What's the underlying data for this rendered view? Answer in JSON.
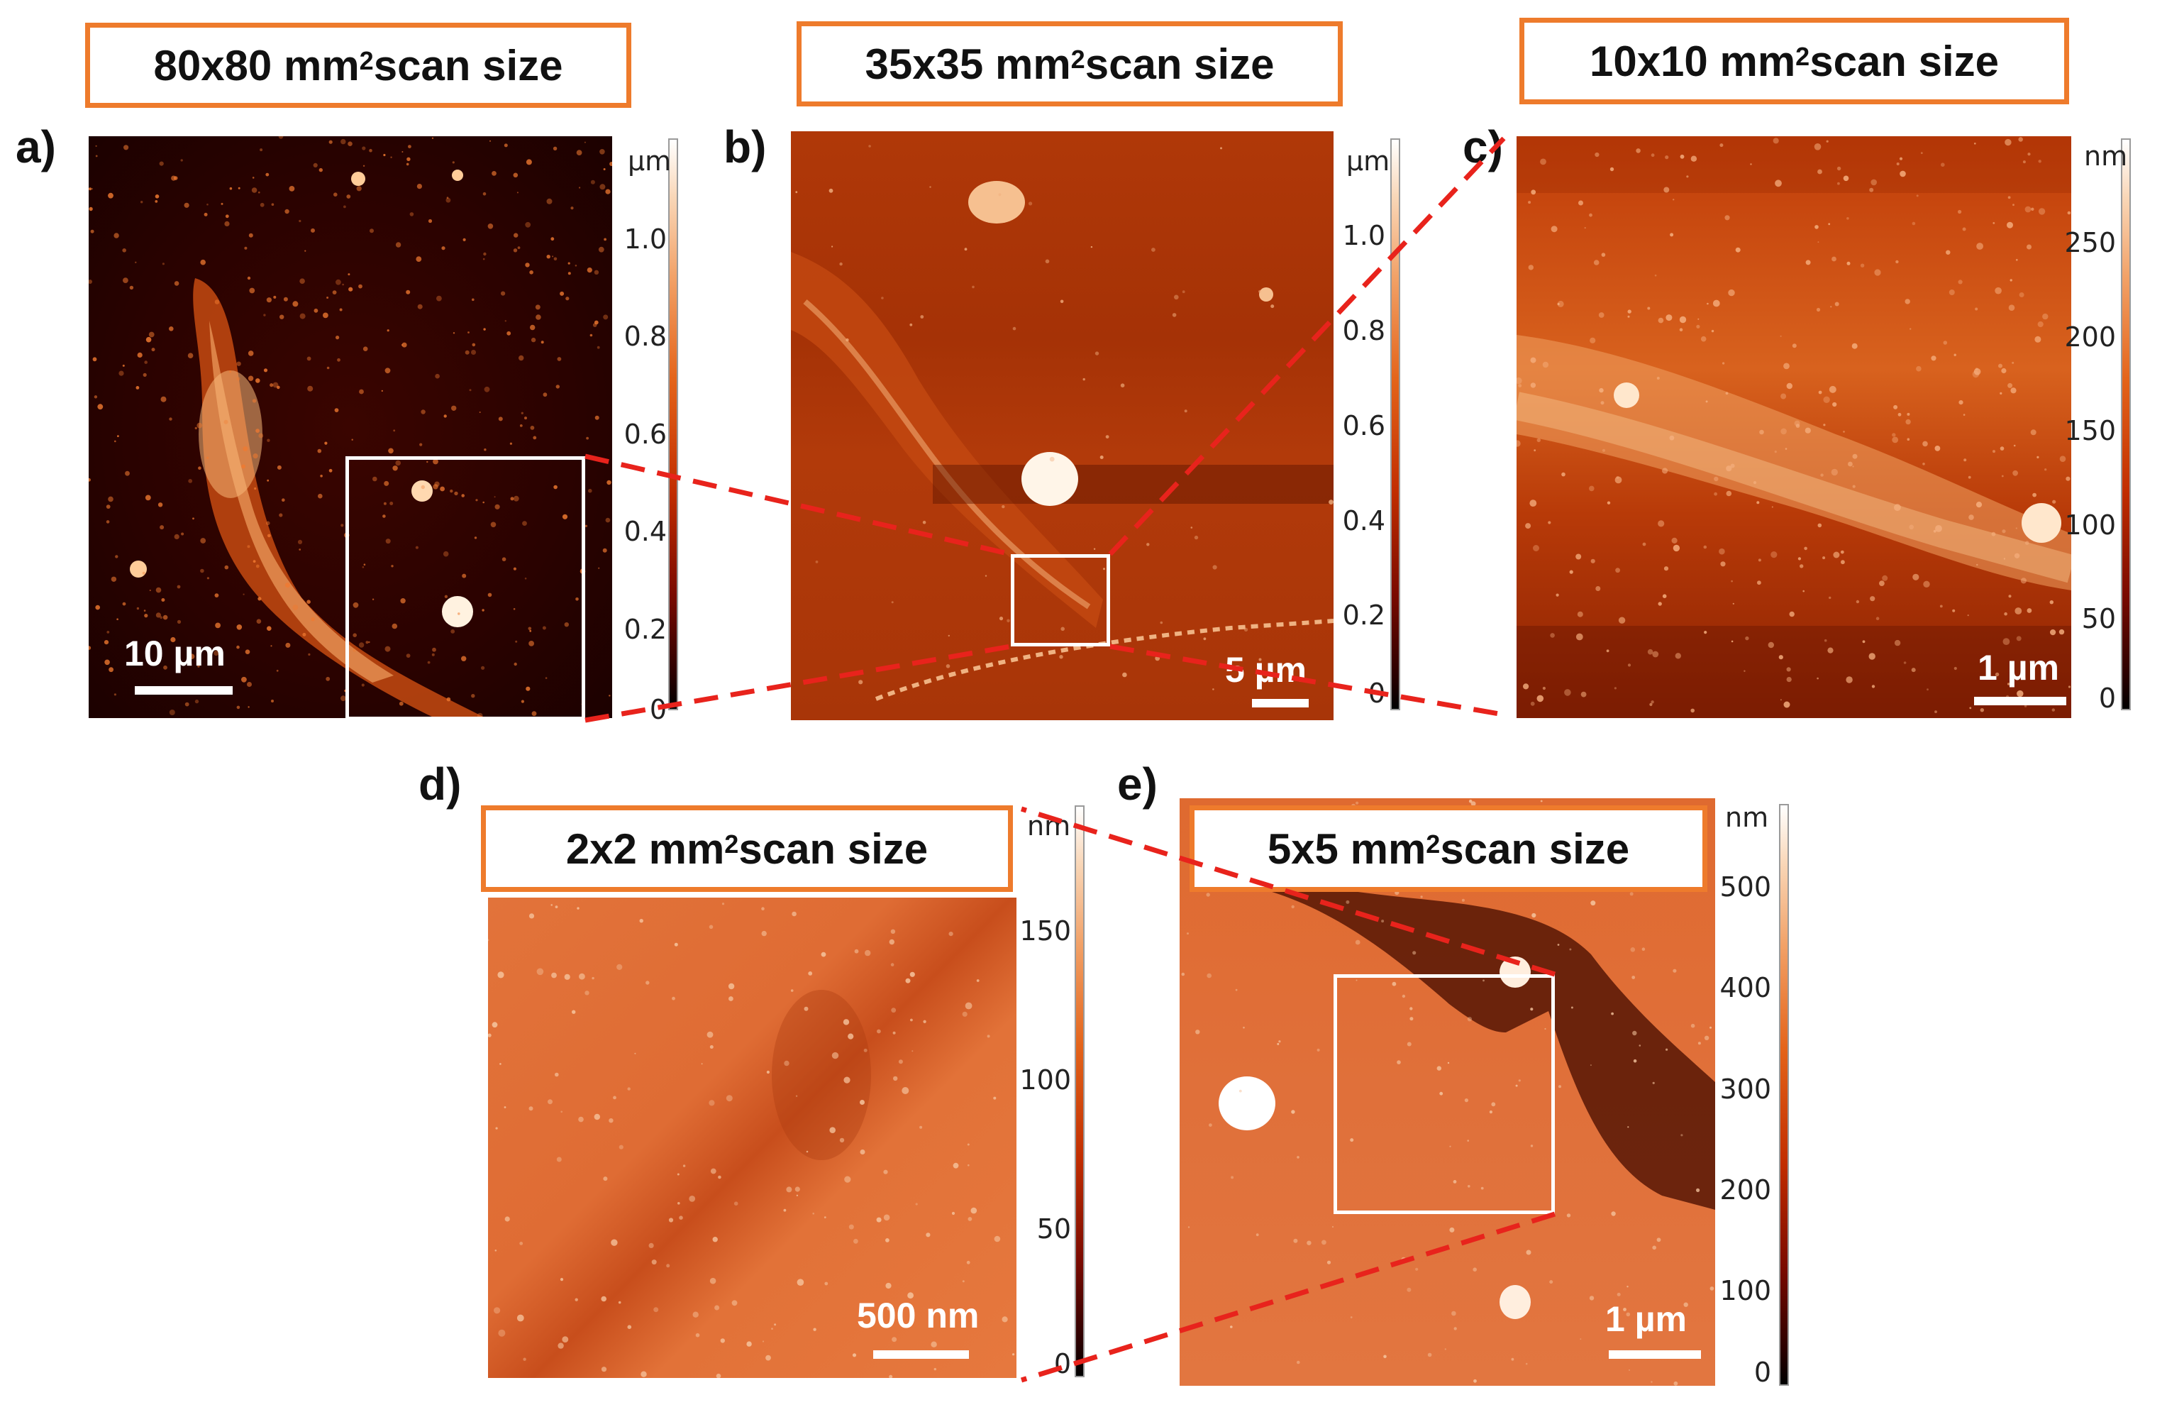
{
  "panels": {
    "a": {
      "letter": "a)",
      "title_main": "80x80 mm",
      "title_sup": "2",
      "title_rest": " scan size",
      "scale_label": "10 µm",
      "unit": "µm",
      "ticks": [
        "1.0",
        "0.8",
        "0.6",
        "0.4",
        "0.2",
        "0"
      ]
    },
    "b": {
      "letter": "b)",
      "title_main": "35x35 mm",
      "title_sup": "2",
      "title_rest": " scan size",
      "scale_label": "5 µm",
      "unit": "µm",
      "ticks": [
        "1.0",
        "0.8",
        "0.6",
        "0.4",
        "0.2",
        "0"
      ]
    },
    "c": {
      "letter": "c)",
      "title_main": "10x10 mm",
      "title_sup": "2",
      "title_rest": " scan size",
      "scale_label": "1 µm",
      "unit": "nm",
      "ticks": [
        "250",
        "200",
        "150",
        "100",
        "50",
        "0"
      ]
    },
    "d": {
      "letter": "d)",
      "title_main": "2x2 mm",
      "title_sup": "2",
      "title_rest": " scan size",
      "scale_label": "500 nm",
      "unit": "nm",
      "ticks": [
        "150",
        "100",
        "50",
        "0"
      ]
    },
    "e": {
      "letter": "e)",
      "title_main": "5x5 mm",
      "title_sup": "2",
      "title_rest": " scan size",
      "scale_label": "1 µm",
      "unit": "nm",
      "ticks": [
        "500",
        "400",
        "300",
        "200",
        "100",
        "0"
      ]
    }
  },
  "colors": {
    "title_border": "#ee7b2c",
    "zoom_line": "#e8231c",
    "roi_box": "#ffffff"
  }
}
